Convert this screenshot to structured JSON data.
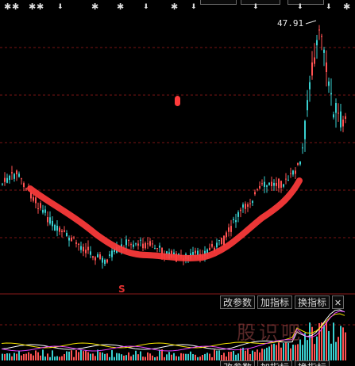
{
  "price_label": "47.91",
  "signal_mark": "S",
  "toolbar": {
    "params_label": "改参数",
    "add_indicator_label": "加指标",
    "switch_indicator_label": "换指标",
    "close_label": "✕"
  },
  "top_tabs": [
    "",
    "",
    ""
  ],
  "watermark": "股识吧",
  "colors": {
    "up": "#ff5252",
    "down": "#39d0d0",
    "trend": "#ff3b3b",
    "grid": "#7a1414",
    "volume_ma1": "#ffffff",
    "volume_ma2": "#f5e400",
    "volume_ma3": "#e040fb"
  },
  "icons": [
    "star-marker-icon",
    "arrow-icon"
  ]
}
